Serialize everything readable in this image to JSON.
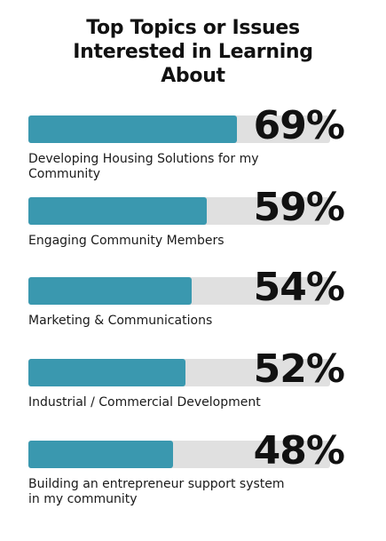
{
  "chart_data": {
    "type": "bar",
    "title": "Top Topics or Issues Interested in Learning About",
    "categories": [
      "Developing Housing Solutions for my Community",
      "Engaging Community Members",
      "Marketing & Communications",
      "Industrial / Commercial Development",
      "Building an entrepreneur support system in my community"
    ],
    "values": [
      69,
      59,
      54,
      52,
      48
    ],
    "value_labels": [
      "69%",
      "59%",
      "54%",
      "52%",
      "48%"
    ],
    "orientation": "horizontal",
    "xlim": [
      0,
      100
    ],
    "grid": false,
    "colors": {
      "bar": "#3a98af",
      "track": "#e0e0e0",
      "text": "#111111"
    }
  }
}
